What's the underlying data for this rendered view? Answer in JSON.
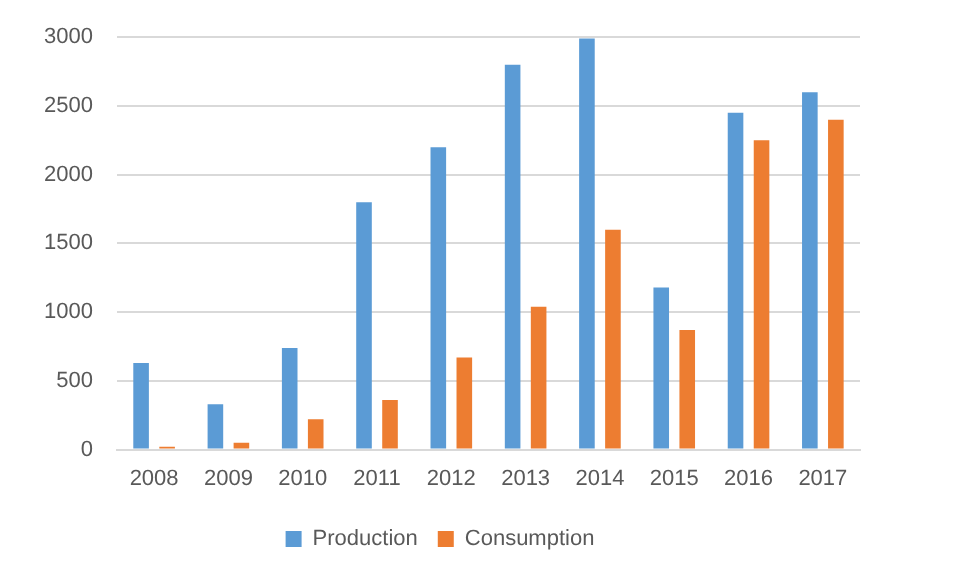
{
  "chart_data": {
    "type": "bar",
    "categories": [
      "2008",
      "2009",
      "2010",
      "2011",
      "2012",
      "2013",
      "2014",
      "2015",
      "2016",
      "2017"
    ],
    "series": [
      {
        "name": "Production",
        "color": "#5b9bd5",
        "values": [
          630,
          330,
          740,
          1800,
          2200,
          2800,
          2990,
          1180,
          2450,
          2600
        ]
      },
      {
        "name": "Consumption",
        "color": "#ed7d31",
        "values": [
          20,
          50,
          220,
          360,
          670,
          1040,
          1600,
          870,
          2250,
          2400
        ]
      }
    ],
    "ylim": [
      0,
      3000
    ],
    "yticks": [
      0,
      500,
      1000,
      1500,
      2000,
      2500,
      3000
    ],
    "grid": "y",
    "legend": "bottom"
  }
}
